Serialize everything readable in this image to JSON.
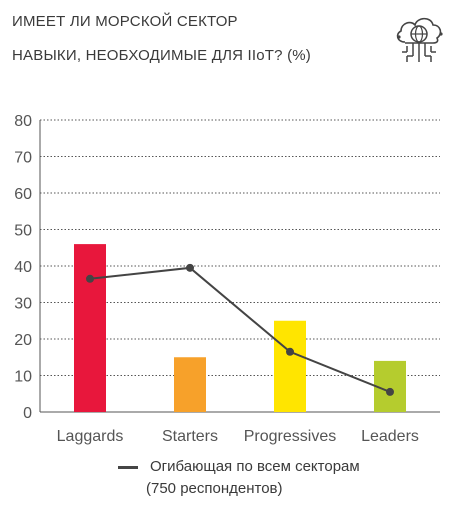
{
  "header": {
    "title_line1": "ИМЕЕТ ЛИ МОРСКОЙ СЕКТОР",
    "title_line2": "НАВЫКИ, НЕОБХОДИМЫЕ ДЛЯ IIoT? (%)",
    "icon": "cloud-network-icon"
  },
  "legend": {
    "line_label": "Огибающая по всем секторам",
    "line_sublabel": "(750 респондентов)"
  },
  "chart_data": {
    "type": "bar",
    "categories": [
      "Laggards",
      "Starters",
      "Progressives",
      "Leaders"
    ],
    "series": [
      {
        "kind": "bar",
        "values": [
          46,
          15,
          25,
          14
        ],
        "colors": [
          "#e8173c",
          "#f7a12a",
          "#ffe500",
          "#b5cc2e"
        ]
      },
      {
        "kind": "line",
        "name": "Огибающая по всем секторам",
        "values": [
          36.5,
          39.5,
          16.5,
          5.5
        ],
        "color": "#444444"
      }
    ],
    "yticks": [
      0,
      10,
      20,
      30,
      40,
      50,
      60,
      70,
      80
    ],
    "ylim": [
      0,
      80
    ],
    "grid": "horizontal dotted",
    "legend_position": "bottom"
  }
}
